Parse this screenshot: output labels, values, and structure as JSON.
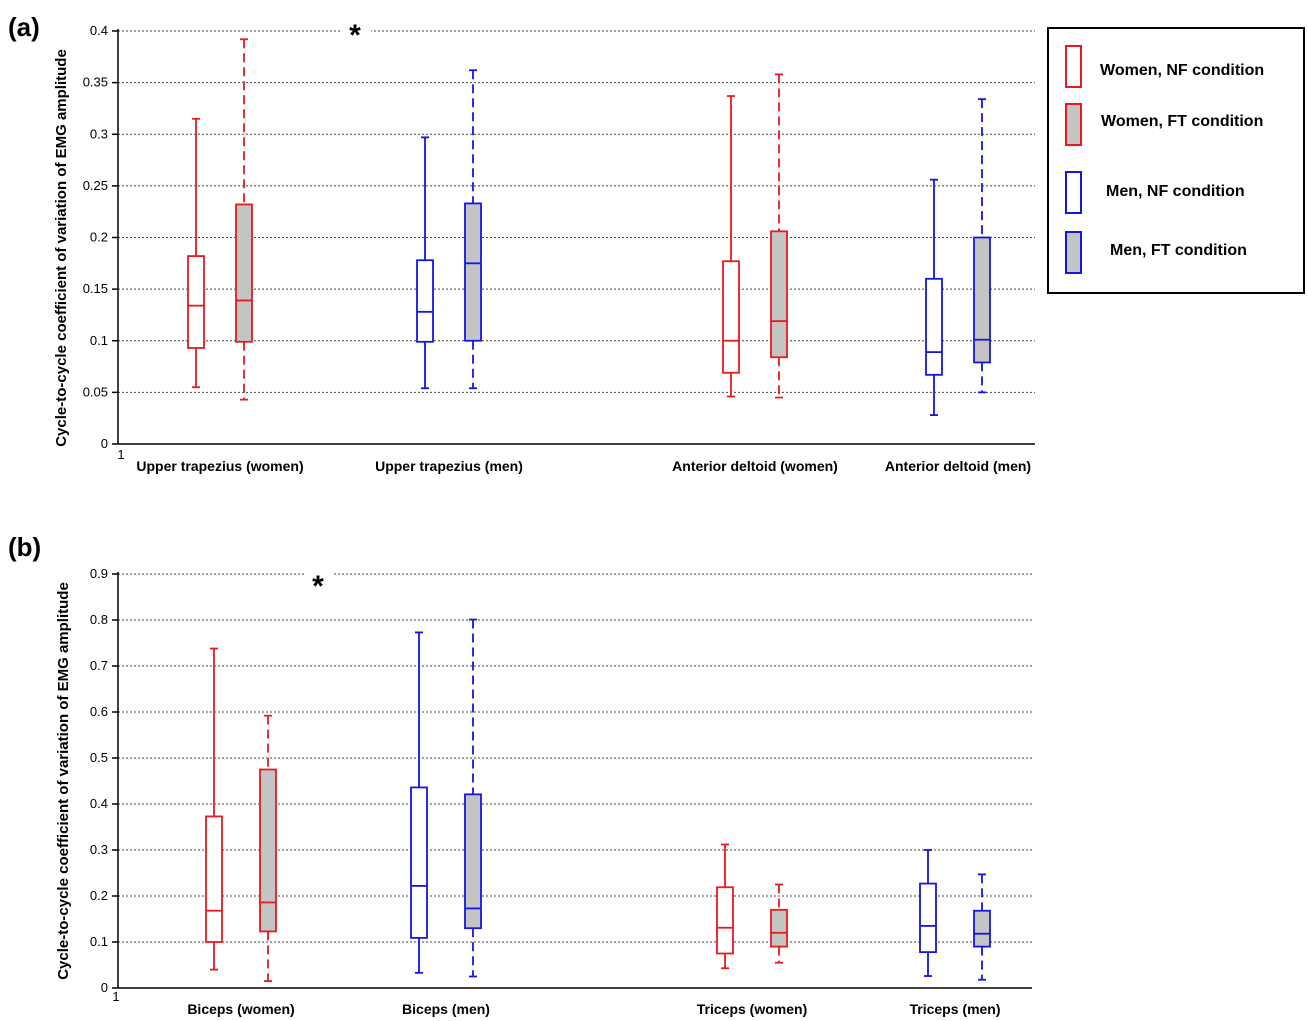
{
  "colors": {
    "women": "#e8191f",
    "men": "#1414e6",
    "ft_fill": "#c4c4c4",
    "grid": "#444444"
  },
  "legend": [
    {
      "label": "Women,  NF condition",
      "sex": "women",
      "condition": "NF"
    },
    {
      "label": "Women, FT condition",
      "sex": "women",
      "condition": "FT"
    },
    {
      "label": "Men, NF condition",
      "sex": "men",
      "condition": "NF"
    },
    {
      "label": "Men, FT condition",
      "sex": "men",
      "condition": "FT"
    }
  ],
  "chart_data": [
    {
      "panel": "(a)",
      "type": "box",
      "ylabel": "Cycle-to-cycle coefficient of variation of EMG amplitude",
      "ylim": [
        0,
        0.4
      ],
      "yticks": [
        "0",
        "0.05",
        "0.1",
        "0.15",
        "0.2",
        "0.25",
        "0.3",
        "0.35",
        "0.4"
      ],
      "x_origin_label": "1",
      "grid": true,
      "annotation": "*",
      "categories": [
        "Upper trapezius (women)",
        "Upper trapezius (men)",
        "Anterior deltoid (women)",
        "Anterior deltoid (men)"
      ],
      "series": [
        {
          "name": "Women, NF condition",
          "boxes": [
            {
              "category": "Upper trapezius (women)",
              "min": 0.055,
              "q1": 0.093,
              "median": 0.134,
              "q3": 0.182,
              "max": 0.315
            },
            {
              "category": "Anterior deltoid (women)",
              "min": 0.046,
              "q1": 0.069,
              "median": 0.1,
              "q3": 0.177,
              "max": 0.337
            }
          ]
        },
        {
          "name": "Women, FT condition",
          "boxes": [
            {
              "category": "Upper trapezius (women)",
              "min": 0.043,
              "q1": 0.099,
              "median": 0.139,
              "q3": 0.232,
              "max": 0.392
            },
            {
              "category": "Anterior deltoid (women)",
              "min": 0.045,
              "q1": 0.084,
              "median": 0.119,
              "q3": 0.206,
              "max": 0.358
            }
          ]
        },
        {
          "name": "Men, NF condition",
          "boxes": [
            {
              "category": "Upper trapezius (men)",
              "min": 0.054,
              "q1": 0.099,
              "median": 0.128,
              "q3": 0.178,
              "max": 0.297
            },
            {
              "category": "Anterior deltoid (men)",
              "min": 0.028,
              "q1": 0.067,
              "median": 0.089,
              "q3": 0.16,
              "max": 0.256
            }
          ]
        },
        {
          "name": "Men, FT condition",
          "boxes": [
            {
              "category": "Upper trapezius (men)",
              "min": 0.054,
              "q1": 0.1,
              "median": 0.175,
              "q3": 0.233,
              "max": 0.362
            },
            {
              "category": "Anterior deltoid (men)",
              "min": 0.05,
              "q1": 0.079,
              "median": 0.101,
              "q3": 0.2,
              "max": 0.334
            }
          ]
        }
      ]
    },
    {
      "panel": "(b)",
      "type": "box",
      "ylabel": "Cycle-to-cycle coefficient of variation of EMG amplitude",
      "ylim": [
        0,
        0.9
      ],
      "yticks": [
        "0",
        "0.1",
        "0.2",
        "0.3",
        "0.4",
        "0.5",
        "0.6",
        "0.7",
        "0.8",
        "0.9"
      ],
      "x_origin_label": "1",
      "grid": true,
      "annotation": "*",
      "categories": [
        "Biceps (women)",
        "Biceps (men)",
        "Triceps (women)",
        "Triceps (men)"
      ],
      "series": [
        {
          "name": "Women, NF condition",
          "boxes": [
            {
              "category": "Biceps (women)",
              "min": 0.04,
              "q1": 0.1,
              "median": 0.168,
              "q3": 0.373,
              "max": 0.738
            },
            {
              "category": "Triceps (women)",
              "min": 0.043,
              "q1": 0.075,
              "median": 0.131,
              "q3": 0.219,
              "max": 0.312
            }
          ]
        },
        {
          "name": "Women, FT condition",
          "boxes": [
            {
              "category": "Biceps (women)",
              "min": 0.015,
              "q1": 0.123,
              "median": 0.186,
              "q3": 0.475,
              "max": 0.592
            },
            {
              "category": "Triceps (women)",
              "min": 0.055,
              "q1": 0.09,
              "median": 0.12,
              "q3": 0.17,
              "max": 0.225
            }
          ]
        },
        {
          "name": "Men, NF condition",
          "boxes": [
            {
              "category": "Biceps (men)",
              "min": 0.033,
              "q1": 0.109,
              "median": 0.222,
              "q3": 0.436,
              "max": 0.773
            },
            {
              "category": "Triceps (men)",
              "min": 0.026,
              "q1": 0.078,
              "median": 0.135,
              "q3": 0.227,
              "max": 0.3
            }
          ]
        },
        {
          "name": "Men, FT condition",
          "boxes": [
            {
              "category": "Biceps (men)",
              "min": 0.025,
              "q1": 0.13,
              "median": 0.173,
              "q3": 0.421,
              "max": 0.801
            },
            {
              "category": "Triceps (men)",
              "min": 0.018,
              "q1": 0.09,
              "median": 0.118,
              "q3": 0.168,
              "max": 0.247
            }
          ]
        }
      ]
    }
  ]
}
